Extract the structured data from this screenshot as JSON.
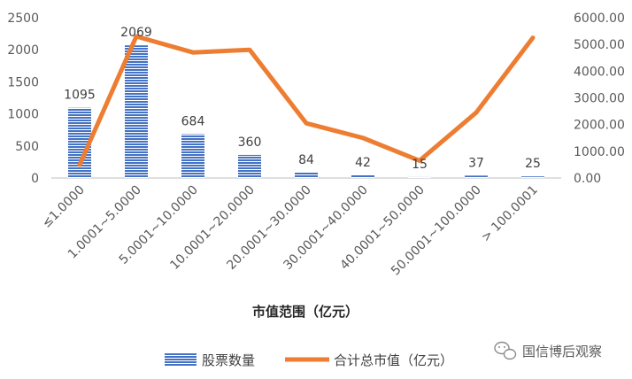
{
  "chart_data": {
    "type": "bar+line",
    "categories": [
      "≤1.0000",
      "1.0001~5.0000",
      "5.0001~10.0000",
      "10.0001~20.0000",
      "20.0001~30.0000",
      "30.0001~40.0000",
      "40.0001~50.0000",
      "50.0001~100.0000",
      "> 100.0001"
    ],
    "series": [
      {
        "name": "股票数量",
        "type": "bar",
        "axis": "left",
        "values": [
          1095,
          2069,
          684,
          360,
          84,
          42,
          15,
          37,
          25
        ],
        "color": "#4472C4"
      },
      {
        "name": "合计总市值（亿元）",
        "type": "line",
        "axis": "right",
        "values": [
          500,
          5300,
          4700,
          4800,
          2050,
          1500,
          650,
          2450,
          5250
        ],
        "color": "#ED7D31"
      }
    ],
    "data_labels": [
      "1095",
      "2069",
      "684",
      "360",
      "84",
      "42",
      "15",
      "37",
      "25"
    ],
    "left_ticks": [
      "0",
      "500",
      "1000",
      "1500",
      "2000",
      "2500"
    ],
    "right_ticks": [
      "0.00",
      "1000.00",
      "2000.00",
      "3000.00",
      "4000.00",
      "5000.00",
      "6000.00"
    ],
    "ylim_left": [
      0,
      2500
    ],
    "ylim_right": [
      0,
      6000
    ],
    "xlabel": "市值范围（亿元）",
    "ylabel": "",
    "grid": false,
    "legend_position": "bottom"
  },
  "watermark": {
    "text": "国信博后观察",
    "icon": "wechat-icon"
  }
}
